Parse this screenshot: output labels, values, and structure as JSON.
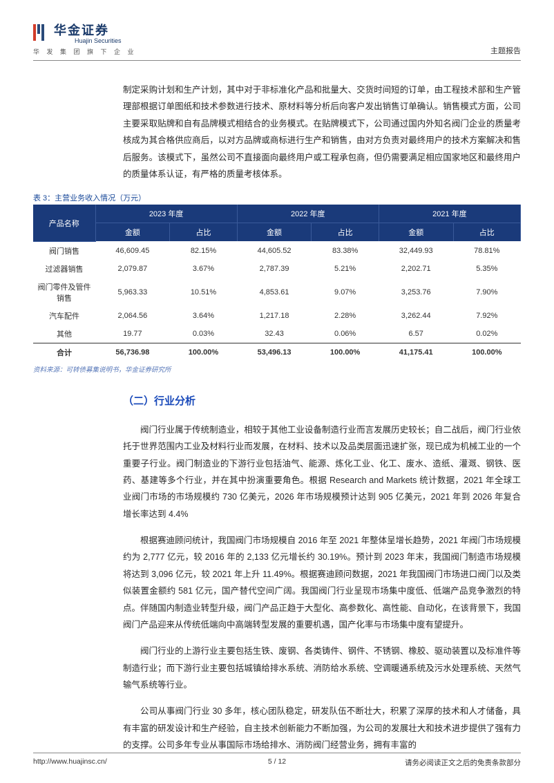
{
  "header": {
    "logo_cn": "华金证券",
    "logo_en": "Huajin Securities",
    "logo_sub": "华 发 集 团 旗 下 企 业",
    "right": "主题报告"
  },
  "intro_para": "制定采购计划和生产计划，其中对于非标准化产品和批量大、交货时间短的订单，由工程技术部和生产管理部根据订单图纸和技术参数进行技术、原材料等分析后向客户发出销售订单确认。销售模式方面，公司主要采取贴牌和自有品牌模式相结合的业务模式。在贴牌模式下，公司通过国内外知名阀门企业的质量考核成为其合格供应商后，以对方品牌或商标进行生产和销售，由对方负责对最终用户的技术方案解决和售后服务。该模式下，虽然公司不直接面向最终用户或工程承包商，但仍需要满足相应国家地区和最终用户的质量体系认证，有严格的质量考核体系。",
  "table": {
    "caption": "表 3：主营业务收入情况（万元）",
    "source": "资料来源：可转债募集说明书，华金证券研究所",
    "header_top": {
      "name": "产品名称",
      "y2023": "2023 年度",
      "y2022": "2022 年度",
      "y2021": "2021 年度"
    },
    "header_sub": {
      "amount": "金额",
      "ratio": "占比"
    },
    "rows": [
      {
        "name": "阀门销售",
        "a2023": "46,609.45",
        "r2023": "82.15%",
        "a2022": "44,605.52",
        "r2022": "83.38%",
        "a2021": "32,449.93",
        "r2021": "78.81%"
      },
      {
        "name": "过滤器销售",
        "a2023": "2,079.87",
        "r2023": "3.67%",
        "a2022": "2,787.39",
        "r2022": "5.21%",
        "a2021": "2,202.71",
        "r2021": "5.35%"
      },
      {
        "name": "阀门零件及管件销售",
        "a2023": "5,963.33",
        "r2023": "10.51%",
        "a2022": "4,853.61",
        "r2022": "9.07%",
        "a2021": "3,253.76",
        "r2021": "7.90%"
      },
      {
        "name": "汽车配件",
        "a2023": "2,064.56",
        "r2023": "3.64%",
        "a2022": "1,217.18",
        "r2022": "2.28%",
        "a2021": "3,262.44",
        "r2021": "7.92%"
      },
      {
        "name": "其他",
        "a2023": "19.77",
        "r2023": "0.03%",
        "a2022": "32.43",
        "r2022": "0.06%",
        "a2021": "6.57",
        "r2021": "0.02%"
      }
    ],
    "total": {
      "name": "合计",
      "a2023": "56,736.98",
      "r2023": "100.00%",
      "a2022": "53,496.13",
      "r2022": "100.00%",
      "a2021": "41,175.41",
      "r2021": "100.00%"
    },
    "colors": {
      "header_bg": "#1a3a7a",
      "header_fg": "#ffffff",
      "caption_color": "#1a4a9a"
    }
  },
  "section_title": "（二）行业分析",
  "para1": "阀门行业属于传统制造业，相较于其他工业设备制造行业而言发展历史较长；自二战后，阀门行业依托于世界范围内工业及材料行业而发展，在材料、技术以及品类层面迅速扩张，现已成为机械工业的一个重要子行业。阀门制造业的下游行业包括油气、能源、炼化工业、化工、废水、造纸、灌溉、钢铁、医药、基建等多个行业，并在其中扮演重要角色。根据 Research and Markets 统计数据，2021 年全球工业阀门市场的市场规模约 730 亿美元，2026 年市场规模预计达到 905 亿美元，2021 年到 2026 年复合增长率达到 4.4%",
  "para2": "根据赛迪顾问统计，我国阀门市场规模自 2016 年至 2021 年整体呈增长趋势，2021 年阀门市场规模约为 2,777 亿元，较 2016 年的 2,133 亿元增长约 30.19%。预计到 2023 年末，我国阀门制造市场规模将达到 3,096 亿元，较 2021 年上升 11.49%。根据赛迪顾问数据，2021 年我国阀门市场进口阀门以及类似装置金额约 581 亿元，国产替代空间广阔。我国阀门行业呈现市场集中度低、低端产品竞争激烈的特点。伴随国内制造业转型升级，阀门产品正趋于大型化、高参数化、高性能、自动化，在该背景下，我国阀门产品迎来从传统低端向中高端转型发展的重要机遇，国产化率与市场集中度有望提升。",
  "para3": "阀门行业的上游行业主要包括生铁、废钢、各类铸件、钢件、不锈钢、橡胶、驱动装置以及标准件等制造行业；而下游行业主要包括城镇给排水系统、消防给水系统、空调暖通系统及污水处理系统、天然气输气系统等行业。",
  "para4": "公司从事阀门行业 30 多年，核心团队稳定，研发队伍不断壮大，积累了深厚的技术和人才储备，具有丰富的研发设计和生产经验，自主技术创新能力不断加强，为公司的发展壮大和技术进步提供了强有力的支撑。公司多年专业从事国际市场给排水、消防阀门经营业务，拥有丰富的",
  "footer": {
    "url": "http://www.huajinsc.cn/",
    "page": "5 / 12",
    "disclaimer": "请务必阅读正文之后的免责条款部分"
  }
}
